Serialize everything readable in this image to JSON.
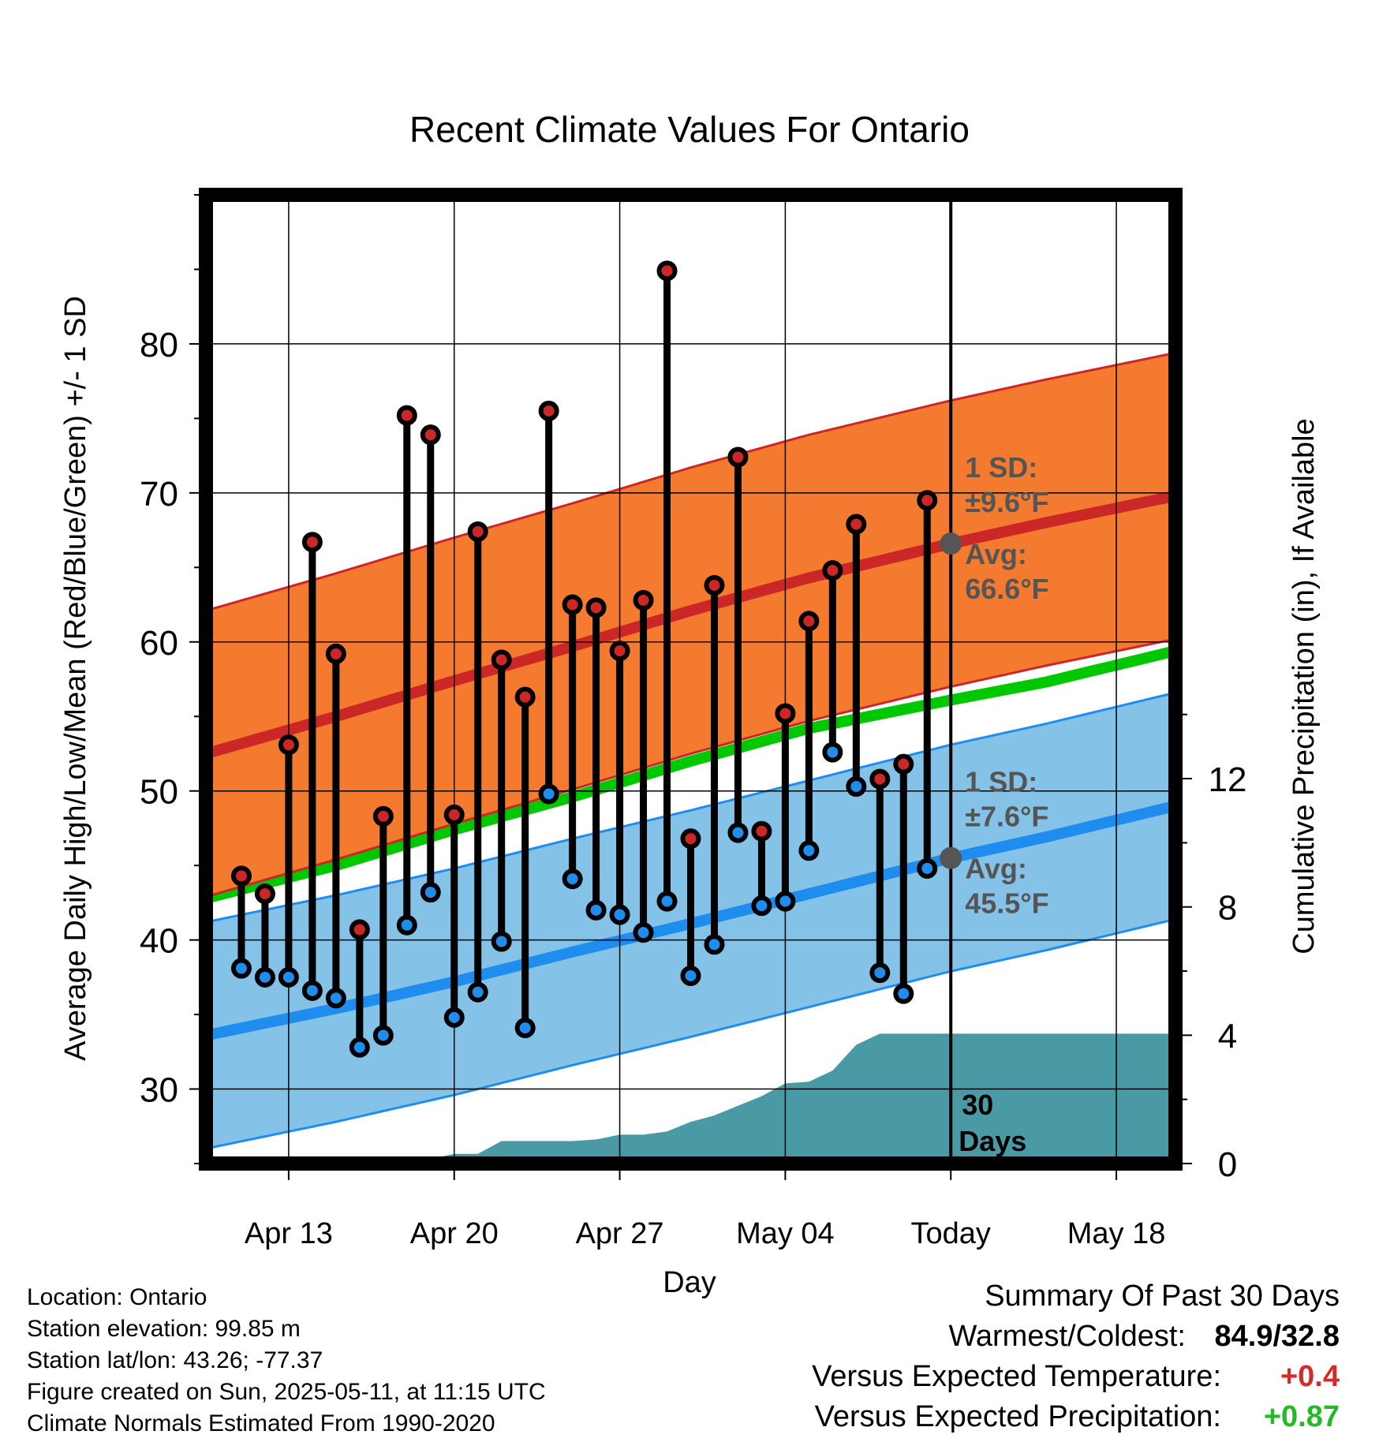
{
  "chart_data": {
    "type": "line",
    "title": "Recent Climate Values For Ontario",
    "xlabel": "Day",
    "ylabel": "Average Daily High/Low/Mean (Red/Blue/Green) +/- 1 SD",
    "y2label": "Cumulative Precipitation (in), If Available",
    "x_tick_labels": [
      "Apr 13",
      "Apr 20",
      "Apr 27",
      "May 04",
      "Today",
      "May 18"
    ],
    "x_tick_days": [
      3,
      10,
      17,
      24,
      31,
      38
    ],
    "x_range_days": [
      -0.5,
      40.5
    ],
    "today_day": 31,
    "ylim": [
      25,
      90
    ],
    "y_ticks": [
      30,
      40,
      50,
      60,
      70,
      80
    ],
    "y2lim": [
      0,
      30.2
    ],
    "y2_ticks": [
      0,
      4,
      8,
      12
    ],
    "grid": true,
    "normals": {
      "day": [
        -0.5,
        5,
        10,
        15,
        20,
        25,
        31,
        35,
        40.5
      ],
      "high_mean": [
        52.5,
        55.0,
        57.4,
        59.7,
        62.1,
        64.3,
        66.6,
        68.0,
        69.8
      ],
      "high_sd": 9.6,
      "low_mean": [
        33.6,
        35.4,
        37.2,
        39.2,
        41.1,
        43.1,
        45.5,
        46.9,
        49.0
      ],
      "low_sd": 7.6,
      "mean": [
        42.8,
        45.0,
        47.4,
        49.6,
        52.0,
        54.2,
        56.1,
        57.3,
        59.4
      ]
    },
    "series": [
      {
        "name": "Daily High",
        "days": [
          1,
          2,
          3,
          4,
          5,
          6,
          7,
          8,
          9,
          10,
          11,
          12,
          13,
          14,
          15,
          16,
          17,
          18,
          19,
          20,
          21,
          22,
          23,
          24,
          25,
          26,
          27,
          28,
          29,
          30
        ],
        "values": [
          44.3,
          43.1,
          53.1,
          66.7,
          59.2,
          40.7,
          48.3,
          75.2,
          73.9,
          48.4,
          67.4,
          58.8,
          56.3,
          75.5,
          62.5,
          62.3,
          59.4,
          62.8,
          84.9,
          46.8,
          63.8,
          72.4,
          47.3,
          55.2,
          61.4,
          64.8,
          67.9,
          50.8,
          51.8,
          69.5
        ]
      },
      {
        "name": "Daily Low",
        "days": [
          1,
          2,
          3,
          4,
          5,
          6,
          7,
          8,
          9,
          10,
          11,
          12,
          13,
          14,
          15,
          16,
          17,
          18,
          19,
          20,
          21,
          22,
          23,
          24,
          25,
          26,
          27,
          28,
          29,
          30
        ],
        "values": [
          38.1,
          37.5,
          37.5,
          36.6,
          36.1,
          32.8,
          33.6,
          41.0,
          43.2,
          34.8,
          36.5,
          39.9,
          34.1,
          49.8,
          44.1,
          42.0,
          41.7,
          40.5,
          42.6,
          37.6,
          39.7,
          47.2,
          42.3,
          42.6,
          46.0,
          52.6,
          50.3,
          37.8,
          36.4,
          44.8
        ]
      },
      {
        "name": "Cumulative Precipitation",
        "days": [
          -0.5,
          5,
          7,
          8,
          9,
          10,
          11,
          12,
          13,
          14,
          15,
          16,
          17,
          18,
          19,
          20,
          21,
          22,
          23,
          24,
          25,
          26,
          27,
          28,
          29,
          31,
          40.5
        ],
        "values": [
          0,
          0,
          0.05,
          0.05,
          0.15,
          0.3,
          0.3,
          0.7,
          0.7,
          0.7,
          0.7,
          0.75,
          0.9,
          0.9,
          1.0,
          1.3,
          1.5,
          1.8,
          2.1,
          2.5,
          2.55,
          2.9,
          3.7,
          4.05,
          4.05,
          4.05,
          4.05
        ]
      }
    ],
    "annotations": {
      "high_sd_label": "1 SD:",
      "high_sd_value": "±9.6°F",
      "high_avg_label": "Avg:",
      "high_avg_value": "66.6°F",
      "low_sd_label": "1 SD:",
      "low_sd_value": "±7.6°F",
      "low_avg_label": "Avg:",
      "low_avg_value": "45.5°F",
      "days_label_1": "30",
      "days_label_2": "Days"
    },
    "colors": {
      "high_band": "#f47a30",
      "high_line": "#cc2727",
      "low_band": "#85c2e8",
      "low_line": "#1f8dee",
      "mean_line": "#00c800",
      "precip": "#4a9aa5",
      "high_dot": "#cc2727",
      "low_dot": "#1f8dee",
      "annotation": "#555555"
    }
  },
  "footer": {
    "location": "Location: Ontario",
    "elevation": "Station elevation: 99.85 m",
    "latlon": "Station lat/lon: 43.26; -77.37",
    "created": "Figure created on Sun, 2025-05-11, at 11:15 UTC",
    "normals": "Climate Normals Estimated From 1990-2020"
  },
  "summary": {
    "title": "Summary Of Past 30 Days",
    "warm_label": "Warmest/Coldest:",
    "warm_value": "84.9/32.8",
    "temp_label": "Versus Expected Temperature:",
    "temp_value": "+0.4",
    "temp_color": "#d42a2a",
    "precip_label": "Versus Expected Precipitation:",
    "precip_value": "+0.87",
    "precip_color": "#22bb22"
  }
}
